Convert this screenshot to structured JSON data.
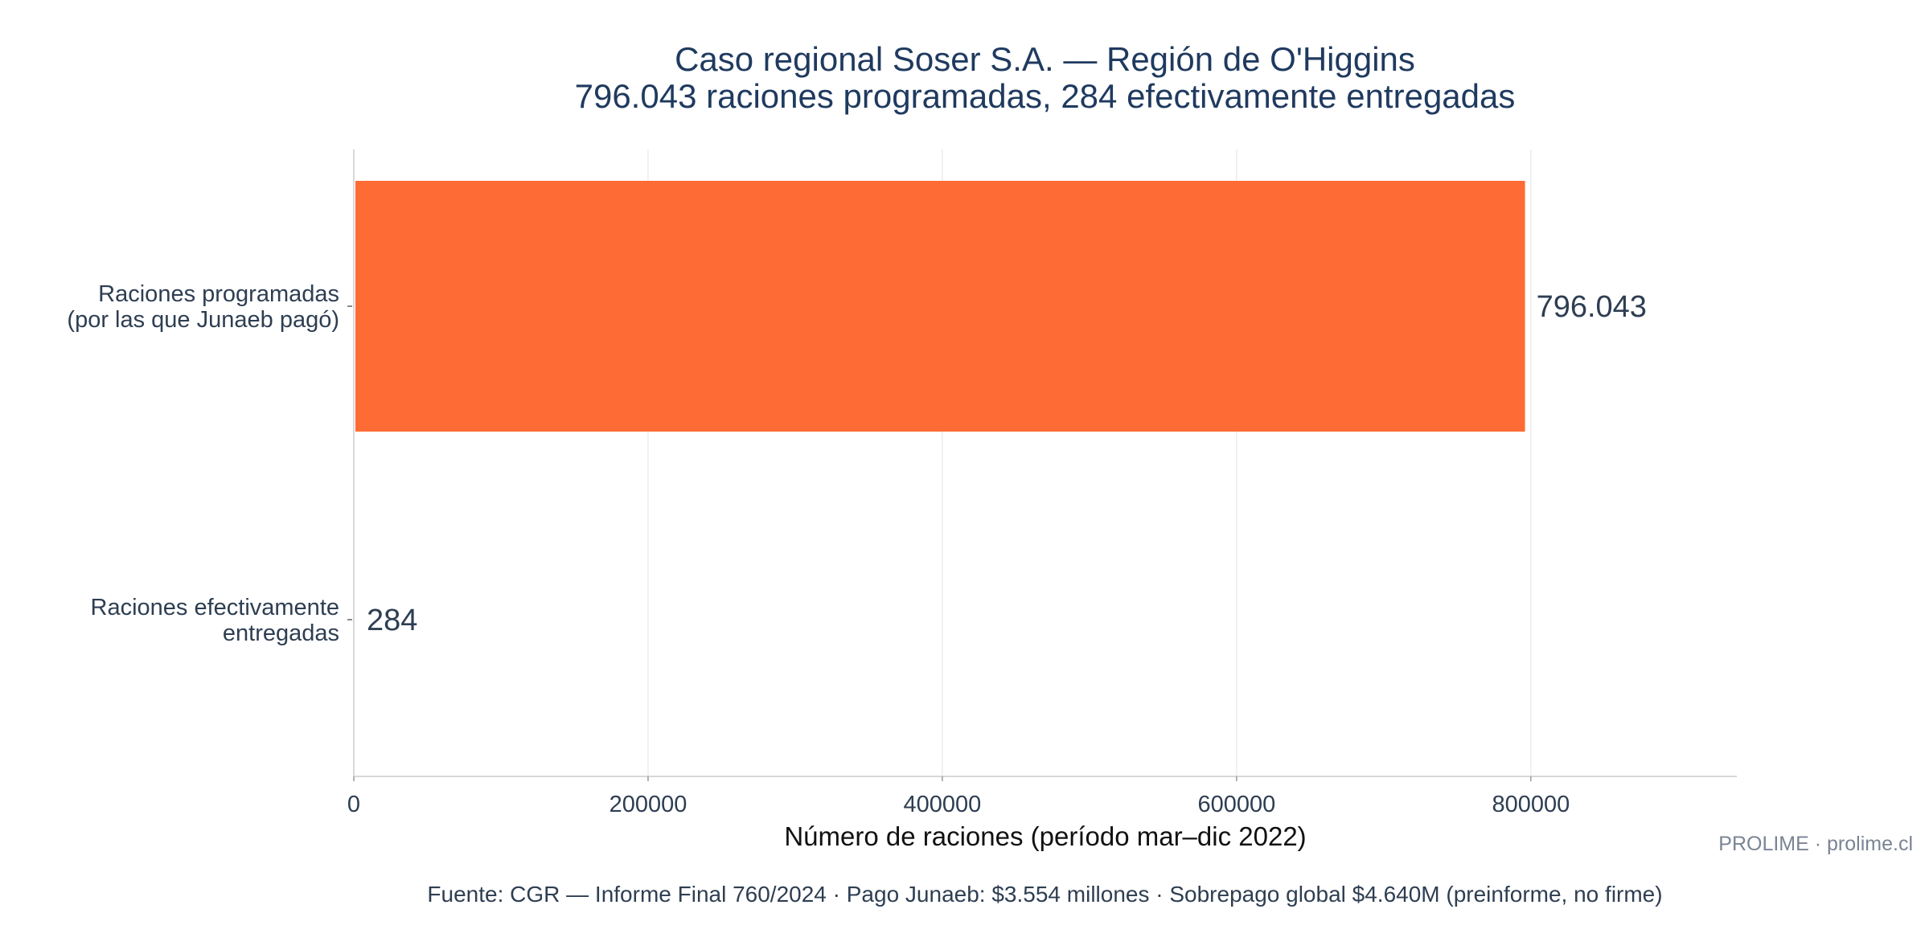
{
  "chart_data": {
    "type": "bar",
    "orientation": "horizontal",
    "title": "Caso regional Soser S.A. — Región de O'Higgins",
    "subtitle": "796.043 raciones programadas, 284 efectivamente entregadas",
    "categories": [
      [
        "Raciones programadas",
        "(por las que Junaeb pagó)"
      ],
      [
        "Raciones efectivamente",
        "entregadas"
      ]
    ],
    "values": [
      796043,
      284
    ],
    "value_labels": [
      "796.043",
      "284"
    ],
    "xlabel": "Número de raciones (período mar–dic 2022)",
    "ylabel": "",
    "xlim": [
      0,
      940000
    ],
    "xticks": [
      0,
      200000,
      400000,
      600000,
      800000
    ],
    "xtick_labels": [
      "0",
      "200000",
      "400000",
      "600000",
      "800000"
    ],
    "grid": "vertical",
    "bar_colors": [
      "#ff6b35",
      "#ff6b35"
    ]
  },
  "watermark": "PROLIME · prolime.cl",
  "footer": "Fuente: CGR — Informe Final 760/2024 · Pago Junaeb: $3.554 millones · Sobrepago global $4.640M (preinforme, no firme)",
  "colors": {
    "bar": "#ff6b35",
    "title": "#1f3a5f",
    "grid": "#ececec",
    "axis": "#d8d8d8"
  }
}
